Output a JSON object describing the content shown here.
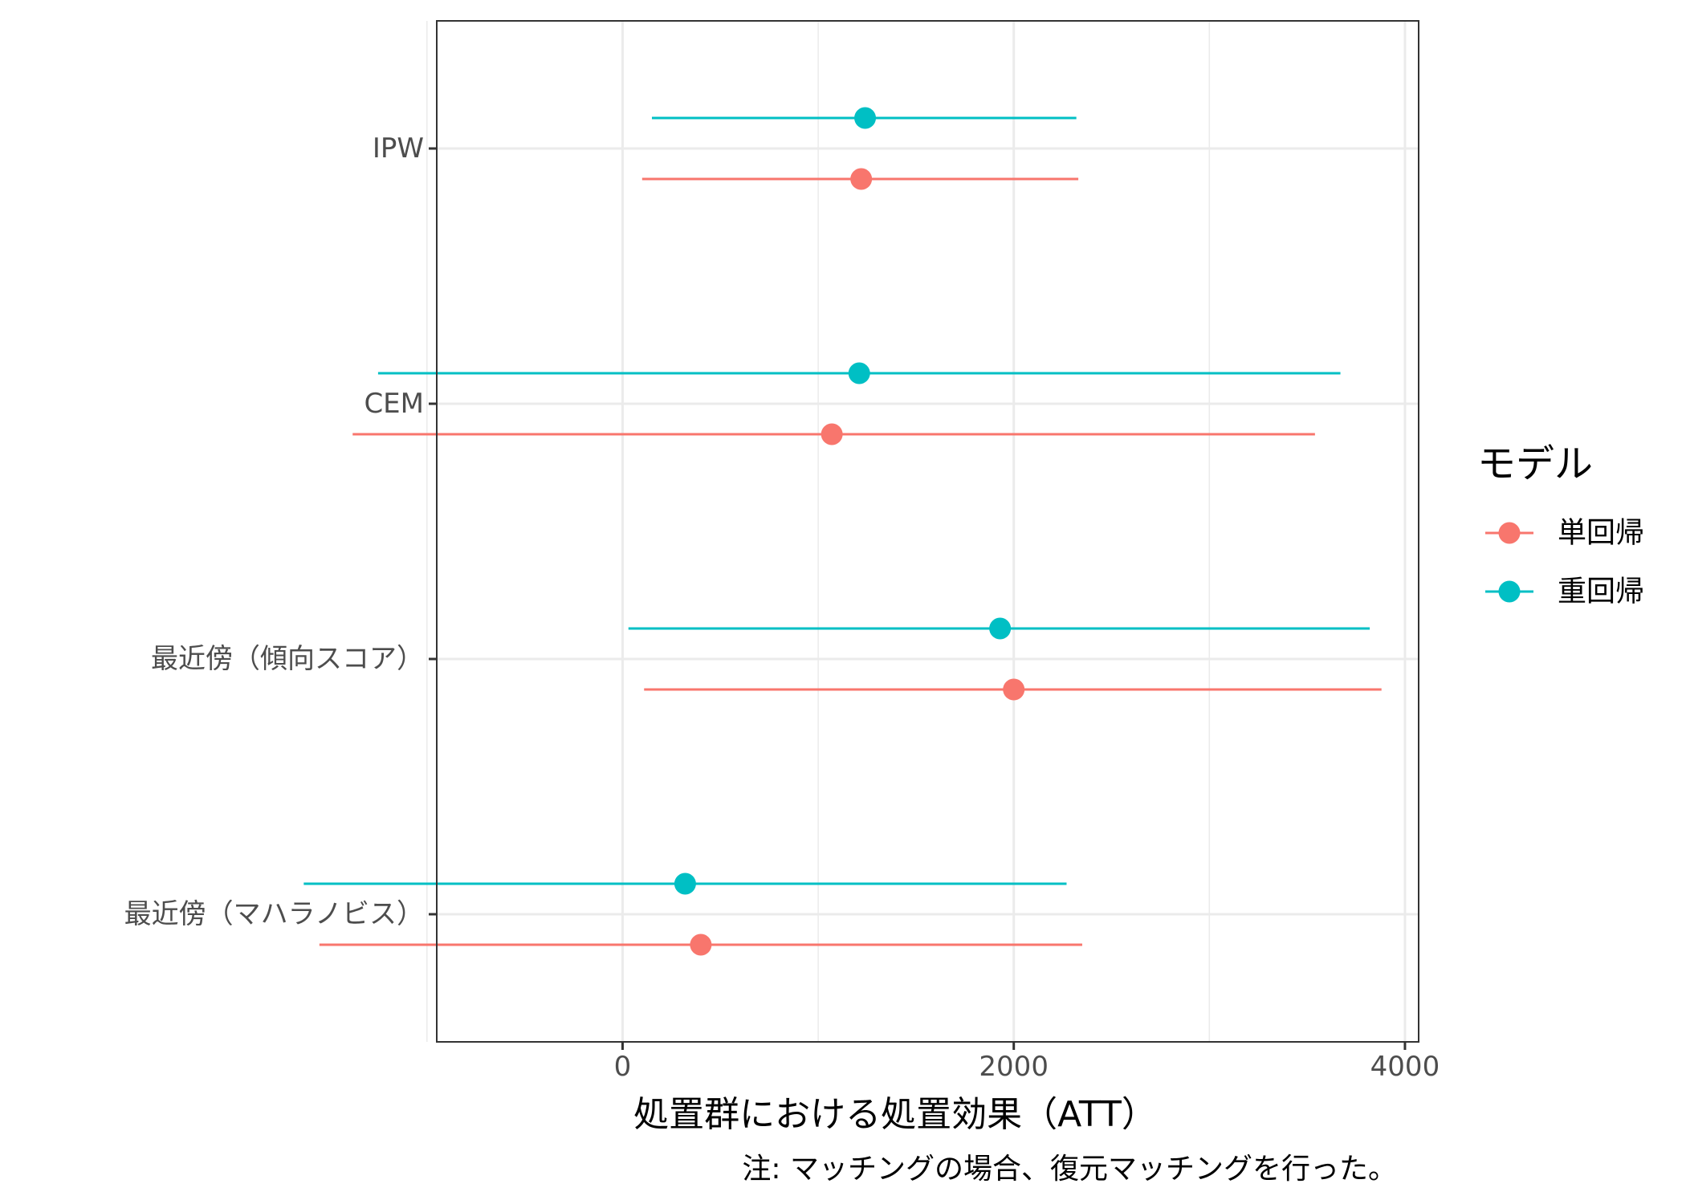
{
  "chart_data": {
    "type": "scatter",
    "subtype": "pointrange",
    "orientation": "horizontal",
    "title": "",
    "xlabel": "処置群における処置効果（ATT）",
    "ylabel": "",
    "caption": "注: マッチングの場合、復元マッチングを行った。",
    "xlim": [
      -950,
      4070
    ],
    "x_ticks": [
      0,
      2000,
      4000
    ],
    "x_minor_grid": [
      -1000,
      1000,
      3000
    ],
    "grid": true,
    "categories": [
      "IPW",
      "CEM",
      "最近傍（傾向スコア）",
      "最近傍（マハラノビス）"
    ],
    "legend": {
      "title": "モデル",
      "position": "right",
      "entries": [
        "単回帰",
        "重回帰"
      ]
    },
    "series": [
      {
        "name": "単回帰",
        "color": "#F8766D",
        "points": [
          {
            "category": "IPW",
            "estimate": 1220,
            "lower": 100,
            "upper": 2330
          },
          {
            "category": "CEM",
            "estimate": 1070,
            "lower": -1380,
            "upper": 3540
          },
          {
            "category": "最近傍（傾向スコア）",
            "estimate": 2000,
            "lower": 110,
            "upper": 3880
          },
          {
            "category": "最近傍（マハラノビス）",
            "estimate": 400,
            "lower": -1550,
            "upper": 2350
          }
        ]
      },
      {
        "name": "重回帰",
        "color": "#00BFC4",
        "points": [
          {
            "category": "IPW",
            "estimate": 1240,
            "lower": 150,
            "upper": 2320
          },
          {
            "category": "CEM",
            "estimate": 1210,
            "lower": -1250,
            "upper": 3670
          },
          {
            "category": "最近傍（傾向スコア）",
            "estimate": 1930,
            "lower": 30,
            "upper": 3820
          },
          {
            "category": "最近傍（マハラノビス）",
            "estimate": 320,
            "lower": -1630,
            "upper": 2270
          }
        ]
      }
    ]
  }
}
